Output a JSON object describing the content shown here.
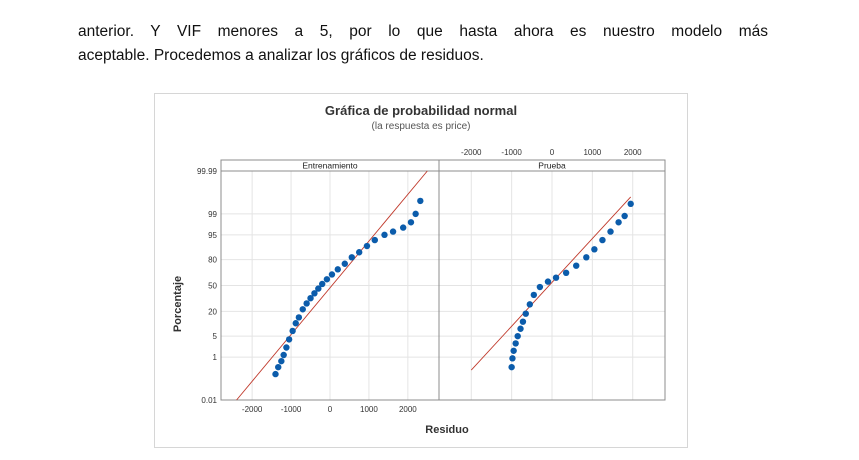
{
  "document": {
    "paragraph_line1": "anterior. Y VIF menores a 5, por lo que hasta ahora es nuestro modelo más",
    "paragraph_line2": "aceptable. Procedemos a analizar los gráficos de residuos."
  },
  "chart_data": {
    "type": "scatter",
    "title": "Gráfica de probabilidad normal",
    "subtitle": "(la respuesta es price)",
    "xlabel": "Residuo",
    "ylabel": "Porcentaje",
    "xlim": [
      -2800,
      2800
    ],
    "ylim_percent": [
      0.01,
      99.99
    ],
    "x_ticks": [
      -2000,
      -1000,
      0,
      1000,
      2000
    ],
    "y_ticks": [
      0.01,
      1,
      5,
      20,
      50,
      80,
      95,
      99,
      99.99
    ],
    "y_tick_labels": [
      "0.01",
      "1",
      "5",
      "20",
      "50",
      "80",
      "95",
      "99",
      "99.99"
    ],
    "y_scale": "normal-probability",
    "grid": true,
    "panels": [
      {
        "name": "Entrenamiento",
        "x_axis_position": "bottom",
        "fit_line": {
          "x": [
            -2400,
            2500
          ],
          "percent": [
            0.01,
            99.99
          ]
        },
        "points": [
          [
            -1400,
            0.2
          ],
          [
            -1330,
            0.4
          ],
          [
            -1250,
            0.7
          ],
          [
            -1190,
            1.2
          ],
          [
            -1120,
            2.2
          ],
          [
            -1050,
            4
          ],
          [
            -960,
            7
          ],
          [
            -880,
            11
          ],
          [
            -800,
            15
          ],
          [
            -700,
            22
          ],
          [
            -600,
            28
          ],
          [
            -500,
            34
          ],
          [
            -400,
            40
          ],
          [
            -300,
            46
          ],
          [
            -200,
            52
          ],
          [
            -80,
            58
          ],
          [
            50,
            64
          ],
          [
            200,
            70
          ],
          [
            380,
            76
          ],
          [
            560,
            82
          ],
          [
            750,
            86
          ],
          [
            950,
            90
          ],
          [
            1150,
            93
          ],
          [
            1400,
            95
          ],
          [
            1620,
            96
          ],
          [
            1880,
            97
          ],
          [
            2080,
            98
          ],
          [
            2200,
            99
          ],
          [
            2320,
            99.7
          ]
        ]
      },
      {
        "name": "Prueba",
        "x_axis_position": "top",
        "fit_line": {
          "x": [
            -2000,
            1950
          ],
          "percent": [
            0.3,
            99.8
          ]
        },
        "points": [
          [
            -1000,
            0.4
          ],
          [
            -980,
            0.9
          ],
          [
            -950,
            1.7
          ],
          [
            -900,
            3
          ],
          [
            -850,
            5
          ],
          [
            -780,
            8
          ],
          [
            -720,
            12
          ],
          [
            -650,
            18
          ],
          [
            -550,
            27
          ],
          [
            -450,
            38
          ],
          [
            -300,
            48
          ],
          [
            -100,
            55
          ],
          [
            100,
            60
          ],
          [
            350,
            66
          ],
          [
            600,
            74
          ],
          [
            850,
            82
          ],
          [
            1050,
            88
          ],
          [
            1250,
            93
          ],
          [
            1450,
            96
          ],
          [
            1650,
            98
          ],
          [
            1800,
            98.8
          ],
          [
            1950,
            99.6
          ]
        ]
      }
    ]
  }
}
